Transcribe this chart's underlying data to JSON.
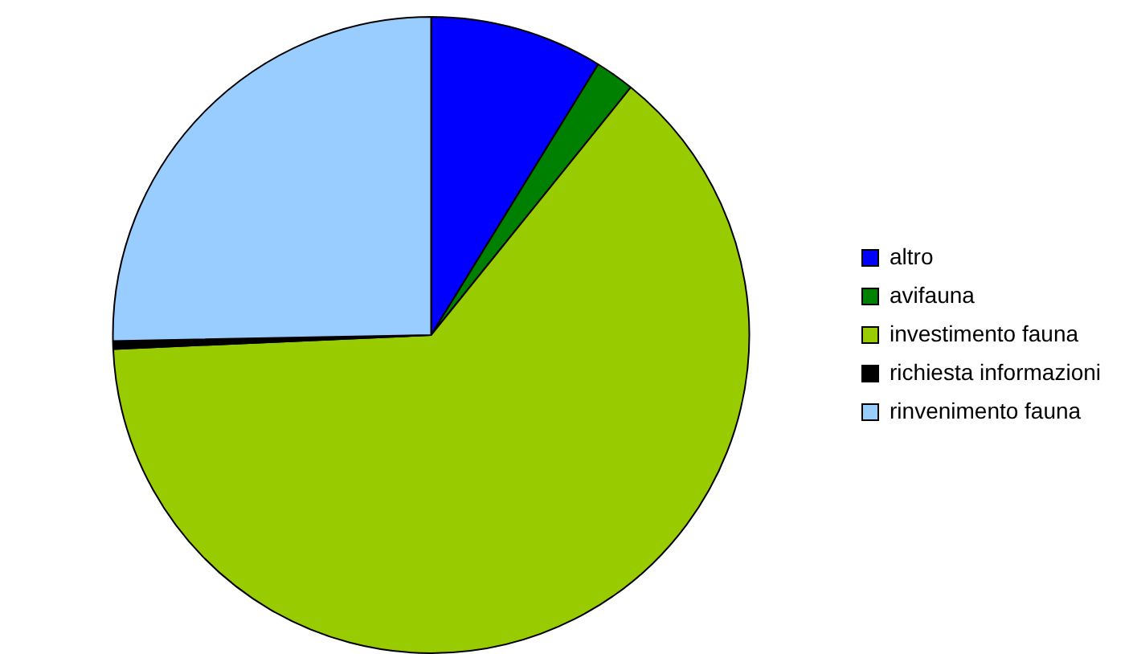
{
  "chart_data": {
    "type": "pie",
    "categories": [
      "altro",
      "avifauna",
      "investimento fauna",
      "richiesta informazioni",
      "rinvenimento fauna"
    ],
    "values": [
      8.8,
      2.0,
      63.5,
      0.4,
      25.3
    ],
    "colors": [
      "#0000ff",
      "#008000",
      "#99cc00",
      "#000000",
      "#99ccff"
    ],
    "legend": "right"
  }
}
